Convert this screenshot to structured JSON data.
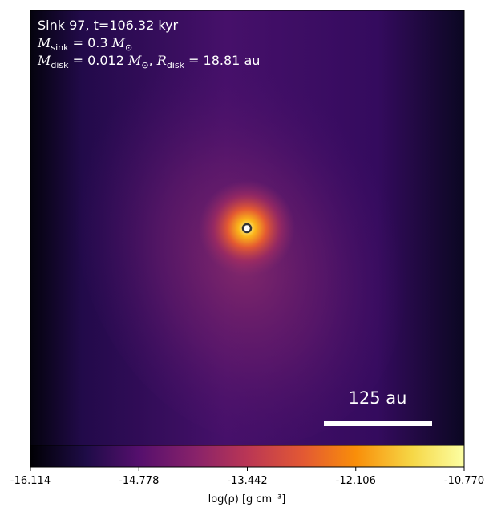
{
  "chart_data": {
    "type": "image",
    "lines": [
      [
        {
          "t": "Sink 97, t=106.32 kyr",
          "style": "plain"
        }
      ],
      [
        {
          "t": "M",
          "style": "italic"
        },
        {
          "t": "sink",
          "style": "sub"
        },
        {
          "t": " = 0.3 ",
          "style": "plain"
        },
        {
          "t": "M",
          "style": "italic"
        },
        {
          "t": "⊙",
          "style": "sub"
        }
      ],
      [
        {
          "t": "M",
          "style": "italic"
        },
        {
          "t": "disk",
          "style": "sub"
        },
        {
          "t": " = 0.012 ",
          "style": "plain"
        },
        {
          "t": "M",
          "style": "italic"
        },
        {
          "t": "⊙",
          "style": "sub"
        },
        {
          "t": ", ",
          "style": "plain"
        },
        {
          "t": "R",
          "style": "italic"
        },
        {
          "t": "disk",
          "style": "sub"
        },
        {
          "t": " = 18.81 au",
          "style": "plain"
        }
      ]
    ],
    "scale_bar": "125 au",
    "colorbar": {
      "label": "log(ρ) [g cm⁻³]",
      "lim": [
        -16.114,
        -10.77
      ],
      "ticks": [
        -16.114,
        -14.778,
        -13.442,
        -12.106,
        {
          "value": -10.77,
          "label": "-10.770"
        }
      ]
    }
  }
}
